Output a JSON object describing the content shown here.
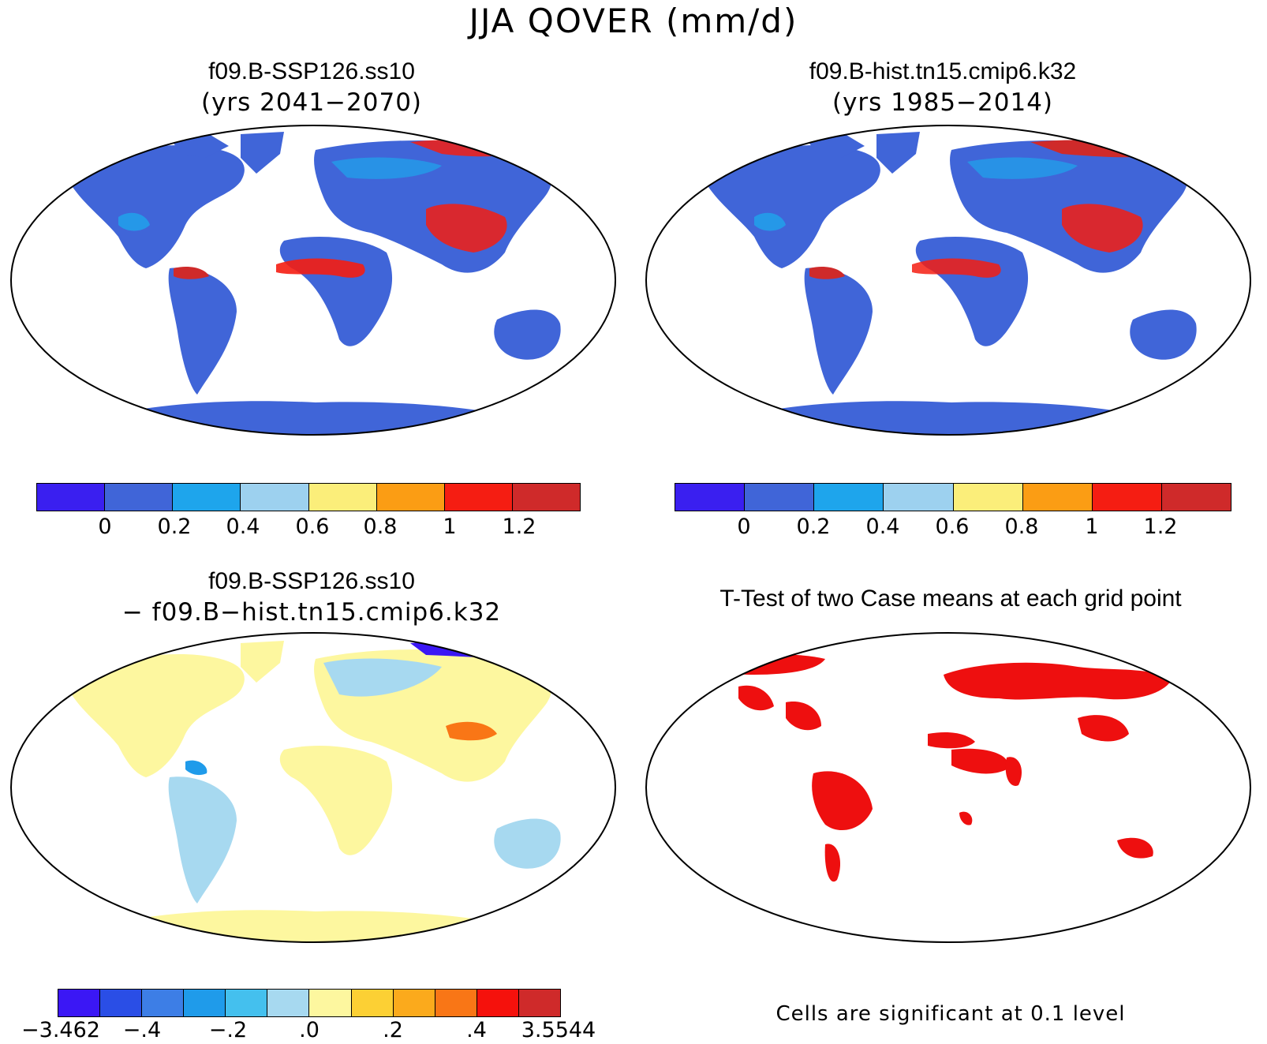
{
  "main_title": "JJA QOVER (mm/d)",
  "panels": {
    "top_left": {
      "title": "f09.B-SSP126.ss10",
      "subtitle": "(yrs 2041−2070)"
    },
    "top_right": {
      "title": "f09.B-hist.tn15.cmip6.k32",
      "subtitle": "(yrs 1985−2014)"
    },
    "bottom_left": {
      "title": "f09.B-SSP126.ss10",
      "subtitle": "− f09.B−hist.tn15.cmip6.k32"
    },
    "bottom_right": {
      "title": "T-Test of two Case means at each grid point",
      "note": "Cells are significant at 0.1 level"
    }
  },
  "legend_abs": {
    "colors": [
      "#3a1ff0",
      "#4065d8",
      "#1ea5ec",
      "#9dd1ef",
      "#fbee7a",
      "#fb9d14",
      "#f51d12",
      "#cf2a2a"
    ],
    "ticks": [
      "0",
      "0.2",
      "0.4",
      "0.6",
      "0.8",
      "1",
      "1.2"
    ]
  },
  "legend_diff": {
    "colors": [
      "#3b17f5",
      "#2a4ee6",
      "#3d7ee6",
      "#1f9bea",
      "#44c0ee",
      "#a7d9f0",
      "#fdf79f",
      "#fcd034",
      "#fbaa1c",
      "#f97616",
      "#f5110c",
      "#cf2a2a"
    ],
    "ticks": [
      "−3.462",
      "−.4",
      "−.2",
      ".0",
      ".2",
      ".4",
      "3.5544"
    ]
  }
}
